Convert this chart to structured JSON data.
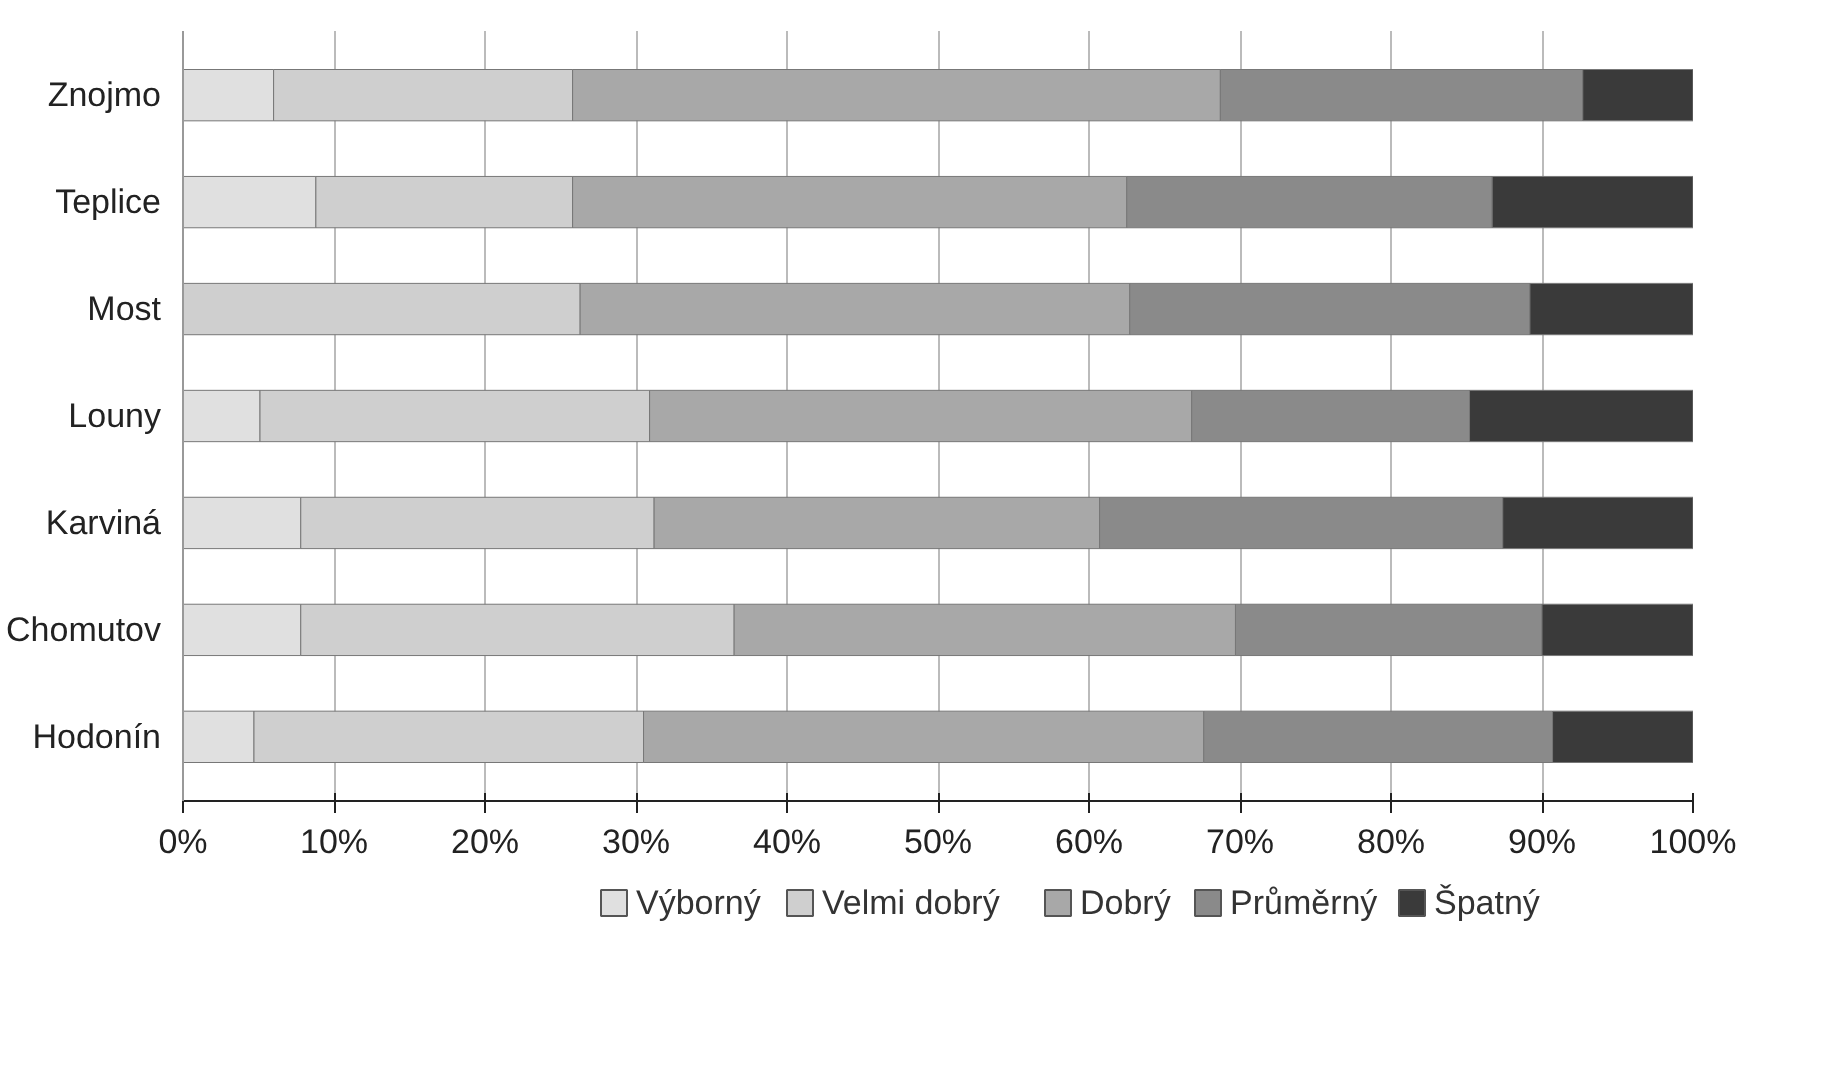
{
  "chart_data": {
    "type": "bar",
    "orientation": "horizontal",
    "stacked": true,
    "categories": [
      "Znojmo",
      "Teplice",
      "Most",
      "Louny",
      "Karviná",
      "Chomutov",
      "Hodonín"
    ],
    "series": [
      {
        "name": "Výborný",
        "color": "#e0e0e0",
        "values": [
          6.0,
          8.8,
          0,
          5.1,
          7.8,
          7.8,
          4.7
        ]
      },
      {
        "name": "Velmi dobrý",
        "color": "#cfcfcf",
        "values": [
          19.8,
          17.0,
          26.3,
          25.8,
          23.4,
          28.7,
          25.8
        ]
      },
      {
        "name": "Dobrý",
        "color": "#a8a8a8",
        "values": [
          42.9,
          36.7,
          36.4,
          35.9,
          29.5,
          33.2,
          37.1
        ]
      },
      {
        "name": "Průměrný",
        "color": "#8a8a8a",
        "values": [
          24.0,
          24.2,
          26.5,
          18.4,
          26.7,
          20.3,
          23.1
        ]
      },
      {
        "name": "Špatný",
        "color": "#3a3a3a",
        "values": [
          7.3,
          13.3,
          10.8,
          14.8,
          12.6,
          10.0,
          9.3
        ]
      }
    ],
    "xlim": [
      0,
      100
    ],
    "xticks": [
      {
        "value": 0,
        "label": "0%"
      },
      {
        "value": 10,
        "label": "10%"
      },
      {
        "value": 20,
        "label": "20%"
      },
      {
        "value": 30,
        "label": "30%"
      },
      {
        "value": 40,
        "label": "40%"
      },
      {
        "value": 50,
        "label": "50%"
      },
      {
        "value": 60,
        "label": "60%"
      },
      {
        "value": 70,
        "label": "70%"
      },
      {
        "value": 80,
        "label": "80%"
      },
      {
        "value": 90,
        "label": "90%"
      },
      {
        "value": 100,
        "label": "100%"
      }
    ],
    "grid": "x",
    "legend": "bottom"
  }
}
